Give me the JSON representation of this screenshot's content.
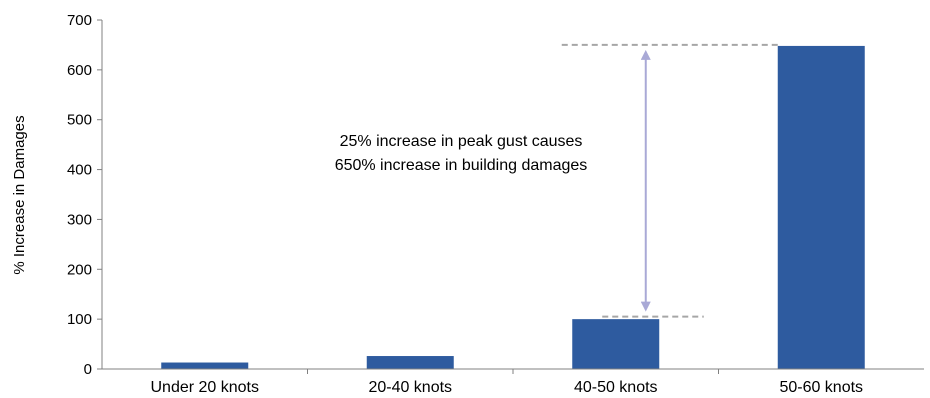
{
  "chart_data": {
    "type": "bar",
    "categories": [
      "Under 20 knots",
      "20-40 knots",
      "40-50 knots",
      "50-60 knots"
    ],
    "values": [
      13,
      26,
      100,
      648
    ],
    "title": "",
    "xlabel": "",
    "ylabel": "% Increase in Damages",
    "ylim": [
      0,
      700
    ],
    "yticks": [
      0,
      100,
      200,
      300,
      400,
      500,
      600,
      700
    ],
    "grid": false,
    "colors": {
      "bar": "#2e5b9f",
      "arrow": "#a9a9d6",
      "dashed": "#a6a6a6"
    },
    "annotation": {
      "lines": [
        "25% increase in peak gust causes",
        "650% increase in building damages"
      ],
      "arrow_from": 105,
      "arrow_to": 650
    }
  }
}
